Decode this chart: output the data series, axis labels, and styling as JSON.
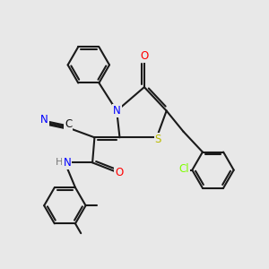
{
  "bg_color": "#e8e8e8",
  "bond_color": "#1a1a1a",
  "bond_width": 1.5,
  "atom_colors": {
    "N": "#0000ff",
    "O": "#ff0000",
    "S": "#bbbb00",
    "Cl": "#7fff00",
    "C": "#111111",
    "H": "#777777"
  },
  "font_size": 8.5
}
